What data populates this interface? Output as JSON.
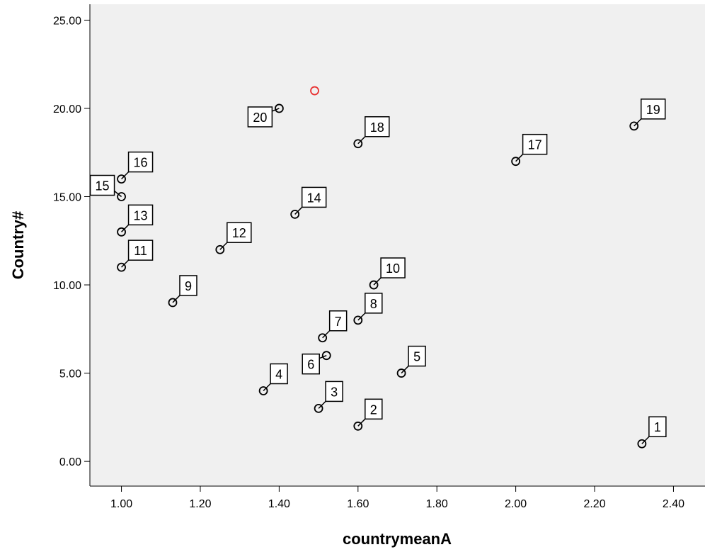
{
  "chart_data": {
    "type": "scatter",
    "title": "",
    "xlabel": "countrymeanA",
    "ylabel": "Country#",
    "xlim": [
      0.92,
      2.48
    ],
    "ylim": [
      -1.4,
      25.9
    ],
    "x_ticks": [
      "1.00",
      "1.20",
      "1.40",
      "1.60",
      "1.80",
      "2.00",
      "2.20",
      "2.40"
    ],
    "x_tick_values": [
      1.0,
      1.2,
      1.4,
      1.6,
      1.8,
      2.0,
      2.2,
      2.4
    ],
    "y_ticks": [
      "0.00",
      "5.00",
      "10.00",
      "15.00",
      "20.00",
      "25.00"
    ],
    "y_tick_values": [
      0,
      5,
      10,
      15,
      20,
      25
    ],
    "grid": false,
    "colors": {
      "plot_bg": "#f0f0f0",
      "marker": "#000000",
      "highlight": "#e83030"
    },
    "points": [
      {
        "label": "1",
        "x": 2.32,
        "y": 1,
        "pos": "ne"
      },
      {
        "label": "2",
        "x": 1.6,
        "y": 2,
        "pos": "ne"
      },
      {
        "label": "3",
        "x": 1.5,
        "y": 3,
        "pos": "ne"
      },
      {
        "label": "4",
        "x": 1.36,
        "y": 4,
        "pos": "ne"
      },
      {
        "label": "5",
        "x": 1.71,
        "y": 5,
        "pos": "ne"
      },
      {
        "label": "6",
        "x": 1.52,
        "y": 6,
        "pos": "sw"
      },
      {
        "label": "7",
        "x": 1.51,
        "y": 7,
        "pos": "ne"
      },
      {
        "label": "8",
        "x": 1.6,
        "y": 8,
        "pos": "ne"
      },
      {
        "label": "9",
        "x": 1.13,
        "y": 9,
        "pos": "ne"
      },
      {
        "label": "10",
        "x": 1.64,
        "y": 10,
        "pos": "ne"
      },
      {
        "label": "11",
        "x": 1.0,
        "y": 11,
        "pos": "ne"
      },
      {
        "label": "12",
        "x": 1.25,
        "y": 12,
        "pos": "ne"
      },
      {
        "label": "13",
        "x": 1.0,
        "y": 13,
        "pos": "ne"
      },
      {
        "label": "14",
        "x": 1.44,
        "y": 14,
        "pos": "ne"
      },
      {
        "label": "15",
        "x": 1.0,
        "y": 15,
        "pos": "nw"
      },
      {
        "label": "16",
        "x": 1.0,
        "y": 16,
        "pos": "ne"
      },
      {
        "label": "17",
        "x": 2.0,
        "y": 17,
        "pos": "ne"
      },
      {
        "label": "18",
        "x": 1.6,
        "y": 18,
        "pos": "ne"
      },
      {
        "label": "19",
        "x": 2.3,
        "y": 19,
        "pos": "ne"
      },
      {
        "label": "20",
        "x": 1.4,
        "y": 20,
        "pos": "sw"
      }
    ],
    "highlighted_points": [
      {
        "x": 1.49,
        "y": 21
      }
    ]
  }
}
